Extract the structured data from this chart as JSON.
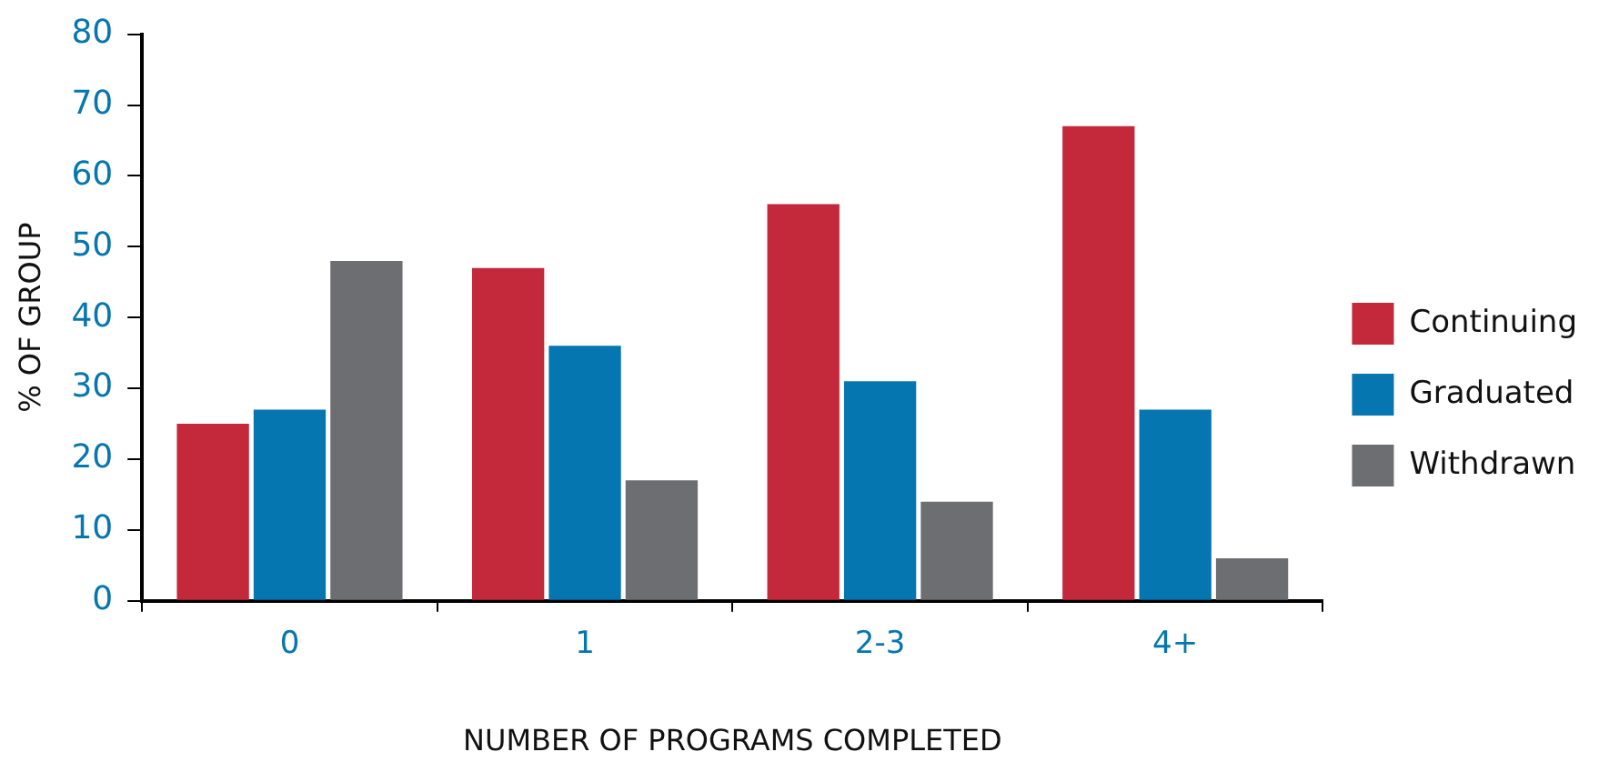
{
  "chart_data": {
    "type": "bar",
    "xlabel": "NUMBER OF PROGRAMS COMPLETED",
    "ylabel": "% OF GROUP",
    "categories": [
      "0",
      "1",
      "2-3",
      "4+"
    ],
    "series": [
      {
        "name": "Continuing",
        "color": "#c3283b",
        "values": [
          25,
          47,
          56,
          67
        ]
      },
      {
        "name": "Graduated",
        "color": "#0676b0",
        "values": [
          27,
          36,
          31,
          27
        ]
      },
      {
        "name": "Withdrawn",
        "color": "#6d6e71",
        "values": [
          48,
          17,
          14,
          6
        ]
      }
    ],
    "ylim": [
      0,
      80
    ],
    "yticks": [
      0,
      10,
      20,
      30,
      40,
      50,
      60,
      70,
      80
    ],
    "grid": false,
    "legend": "right"
  }
}
